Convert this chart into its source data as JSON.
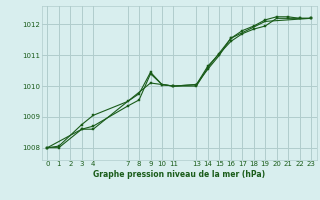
{
  "background_color": "#d8eeee",
  "grid_color": "#b0cccc",
  "line_color": "#1a5c1a",
  "marker_color": "#1a5c1a",
  "xlabel": "Graphe pression niveau de la mer (hPa)",
  "xlim": [
    -0.5,
    23.5
  ],
  "ylim": [
    1007.6,
    1012.6
  ],
  "xticks": [
    0,
    1,
    2,
    3,
    4,
    7,
    8,
    9,
    10,
    11,
    13,
    14,
    15,
    16,
    17,
    18,
    19,
    20,
    21,
    22,
    23
  ],
  "yticks": [
    1008,
    1009,
    1010,
    1011,
    1012
  ],
  "series1_x": [
    0,
    1,
    3,
    4,
    7,
    8,
    9,
    10,
    11,
    13,
    14,
    15,
    16,
    17,
    18,
    19,
    20,
    21,
    22,
    23
  ],
  "series1_y": [
    1008.0,
    1008.0,
    1008.6,
    1008.7,
    1009.35,
    1009.55,
    1010.4,
    1010.05,
    1010.0,
    1010.05,
    1010.65,
    1011.05,
    1011.45,
    1011.7,
    1011.85,
    1011.95,
    1012.2,
    1012.2,
    1012.2,
    1012.2
  ],
  "series2_x": [
    0,
    1,
    3,
    4,
    7,
    8,
    9,
    10,
    11,
    13,
    14,
    15,
    16,
    17,
    18,
    19,
    20,
    21,
    22,
    23
  ],
  "series2_y": [
    1008.0,
    1008.05,
    1008.75,
    1009.05,
    1009.5,
    1009.75,
    1010.45,
    1010.05,
    1010.0,
    1010.05,
    1010.55,
    1011.0,
    1011.55,
    1011.8,
    1011.95,
    1012.15,
    1012.25,
    1012.25,
    1012.2,
    1012.2
  ],
  "series3_x": [
    0,
    3,
    4,
    9,
    11,
    13,
    14,
    16,
    19,
    23
  ],
  "series3_y": [
    1008.0,
    1008.6,
    1008.6,
    1010.1,
    1010.0,
    1010.0,
    1010.6,
    1011.55,
    1012.1,
    1012.2
  ]
}
